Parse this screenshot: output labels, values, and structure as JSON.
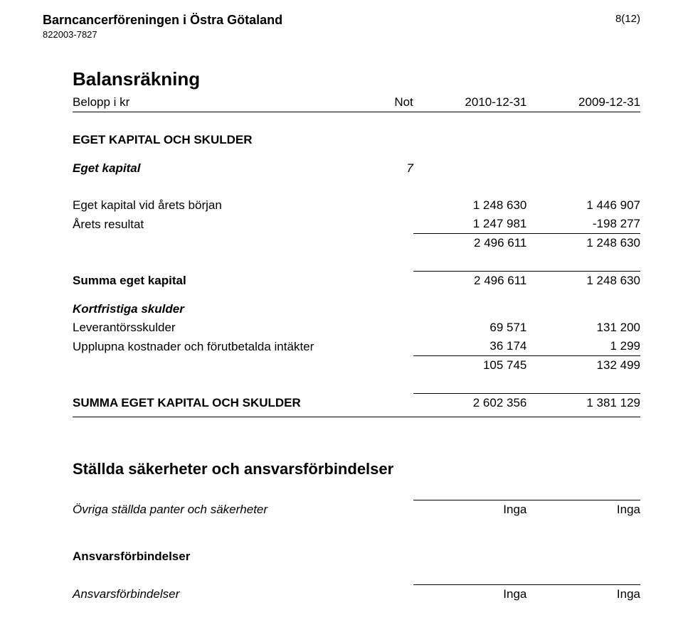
{
  "header": {
    "org_name": "Barncancerföreningen i Östra Götaland",
    "org_number": "822003-7827",
    "page_number": "8(12)"
  },
  "balance": {
    "title": "Balansräkning",
    "col_label": "Belopp i kr",
    "col_not": "Not",
    "col_year_a": "2010-12-31",
    "col_year_b": "2009-12-31",
    "section_heading": "EGET KAPITAL OCH SKULDER",
    "eget_kapital": {
      "label": "Eget kapital",
      "not": "7",
      "rows": {
        "start": {
          "label": "Eget kapital vid årets början",
          "a": "1 248 630",
          "b": "1 446 907"
        },
        "result": {
          "label": "Årets resultat",
          "a": "1 247 981",
          "b": "-198 277"
        },
        "subtotal": {
          "a": "2 496 611",
          "b": "1 248 630"
        }
      },
      "sum": {
        "label": "Summa eget kapital",
        "a": "2 496 611",
        "b": "1 248 630"
      }
    },
    "kortfristiga": {
      "label": "Kortfristiga skulder",
      "rows": {
        "lever": {
          "label": "Leverantörsskulder",
          "a": "69 571",
          "b": "131 200"
        },
        "upplupna": {
          "label": "Upplupna kostnader och förutbetalda intäkter",
          "a": "36 174",
          "b": "1 299"
        },
        "subtotal": {
          "a": "105 745",
          "b": "132 499"
        }
      }
    },
    "grand": {
      "label": "SUMMA EGET KAPITAL OCH SKULDER",
      "a": "2 602 356",
      "b": "1 381 129"
    }
  },
  "securities": {
    "title": "Ställda säkerheter och ansvarsförbindelser",
    "rows": {
      "panter": {
        "label": "Övriga ställda panter och säkerheter",
        "a": "Inga",
        "b": "Inga"
      }
    },
    "ansvars": {
      "title": "Ansvarsförbindelser",
      "row": {
        "label": "Ansvarsförbindelser",
        "a": "Inga",
        "b": "Inga"
      }
    }
  }
}
